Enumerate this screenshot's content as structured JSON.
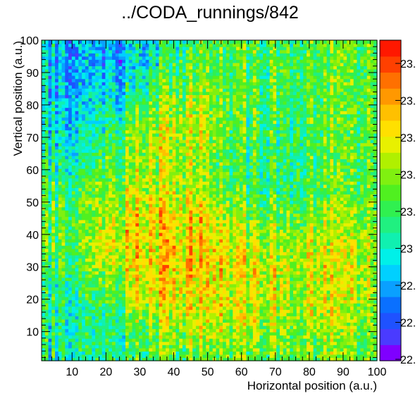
{
  "chart_data": {
    "type": "heatmap",
    "title": "../CODA_runnings/842",
    "xlabel": "Horizontal position (a.u.)",
    "ylabel": "Vertical position (a.u.)",
    "xlim": [
      1,
      100
    ],
    "ylim": [
      1,
      100
    ],
    "x_ticks": [
      "10",
      "20",
      "30",
      "40",
      "50",
      "60",
      "70",
      "80",
      "90",
      "100"
    ],
    "y_ticks": [
      "10",
      "20",
      "30",
      "40",
      "50",
      "60",
      "70",
      "80",
      "90",
      "100"
    ],
    "bins": [
      100,
      100
    ],
    "colorbar_labels": [
      "23.",
      "23.",
      "23.",
      "23.",
      "23.",
      "23",
      "22.",
      "22.",
      "22."
    ],
    "colormap": [
      "#7f00ff",
      "#4a3bff",
      "#1f52ff",
      "#0a70ff",
      "#0aa0ff",
      "#00d0ff",
      "#00f0e8",
      "#10f0b0",
      "#20f080",
      "#30f050",
      "#50f020",
      "#80f010",
      "#b0f000",
      "#e8f000",
      "#ffe000",
      "#ffc000",
      "#ff9800",
      "#ff7000",
      "#ff4000",
      "#ff1800"
    ],
    "regions": [
      {
        "x": 18,
        "y": 92,
        "value": 0.12
      },
      {
        "x": 12,
        "y": 78,
        "value": 0.22
      },
      {
        "x": 38,
        "y": 35,
        "value": 0.82
      },
      {
        "x": 55,
        "y": 30,
        "value": 0.76
      },
      {
        "x": 33,
        "y": 72,
        "value": 0.72
      },
      {
        "x": 80,
        "y": 30,
        "value": 0.7
      },
      {
        "x": 8,
        "y": 10,
        "value": 0.35
      },
      {
        "x": 70,
        "y": 55,
        "value": 0.45
      }
    ]
  }
}
